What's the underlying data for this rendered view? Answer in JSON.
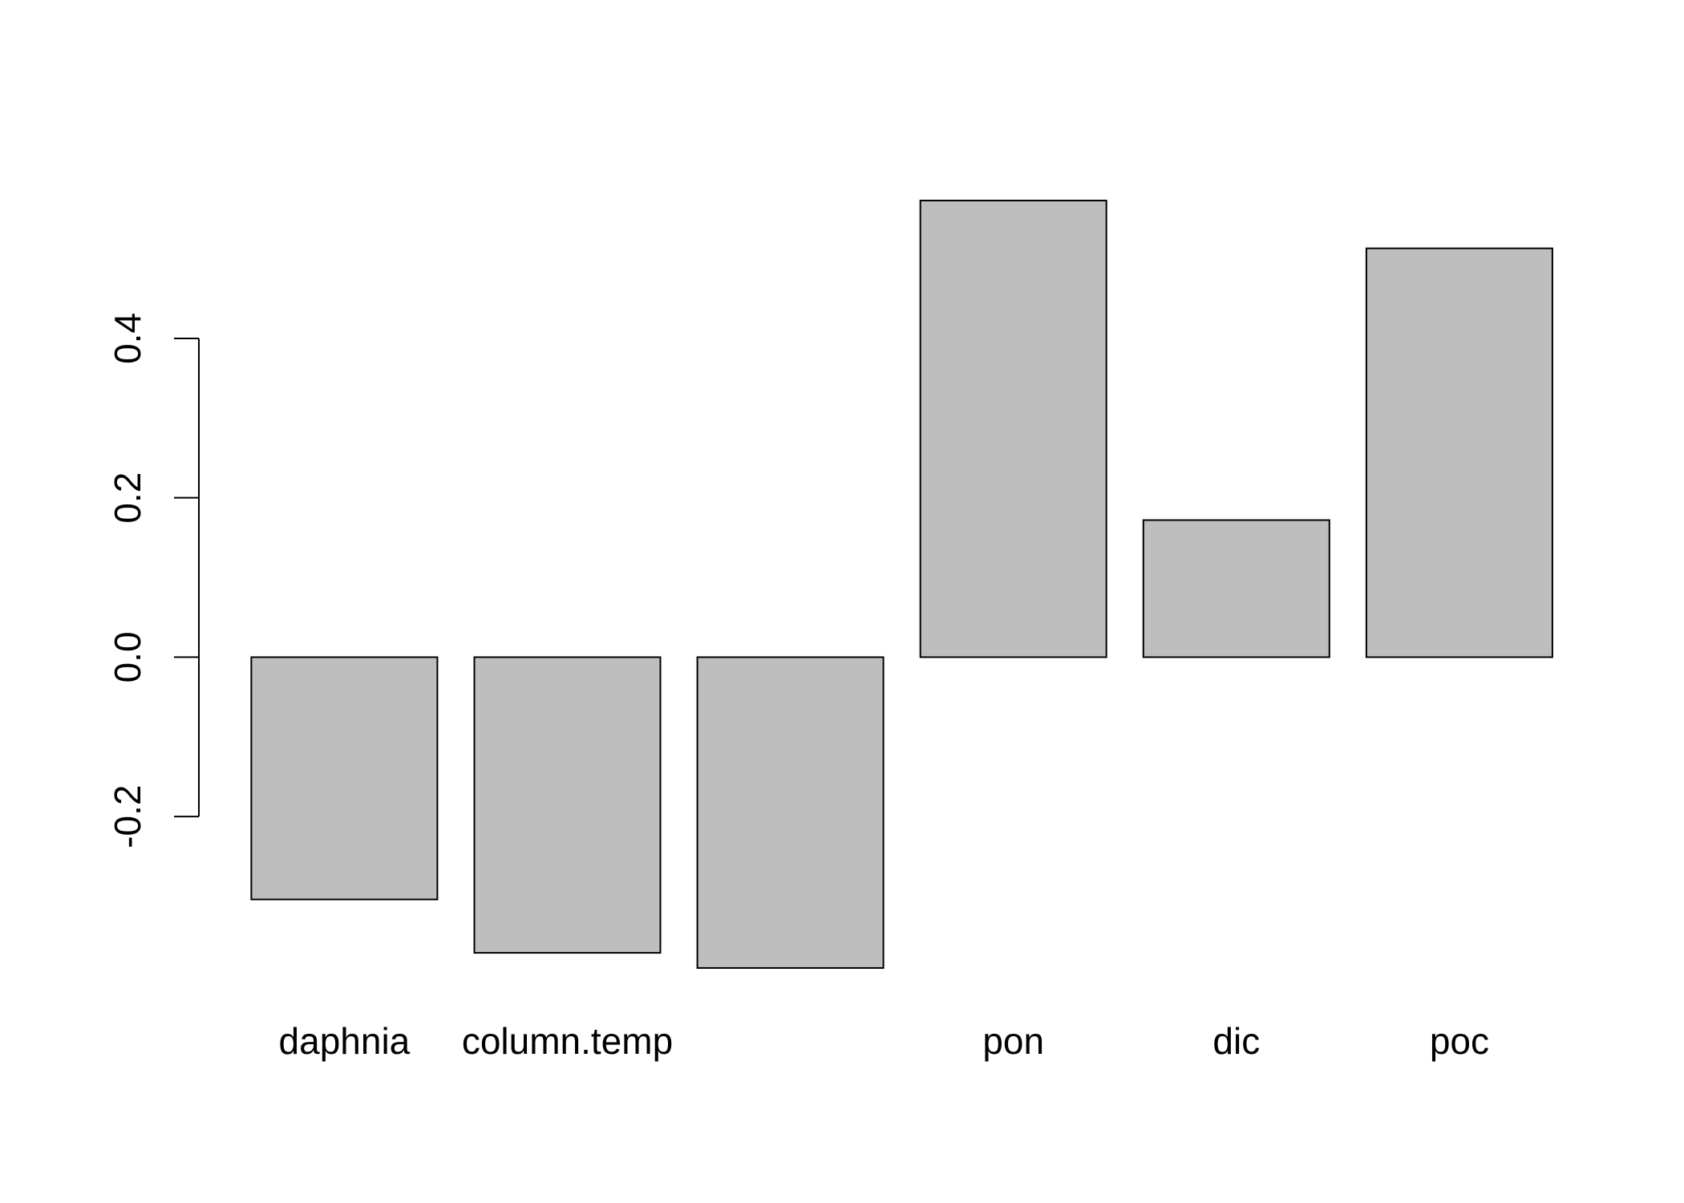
{
  "chart_data": {
    "type": "bar",
    "categories": [
      "daphnia",
      "column.temp",
      null,
      "pon",
      "dic",
      "poc"
    ],
    "values": [
      -0.304,
      -0.371,
      -0.39,
      0.573,
      0.172,
      0.513
    ],
    "color": "#bebebe",
    "ylim": [
      -0.4,
      0.6
    ],
    "yticks": [
      {
        "value": -0.2,
        "label": "-0.2"
      },
      {
        "value": 0,
        "label": "0.0"
      },
      {
        "value": 0.2,
        "label": "0.2"
      },
      {
        "value": 0.4,
        "label": "0.4"
      }
    ],
    "grid": false
  }
}
